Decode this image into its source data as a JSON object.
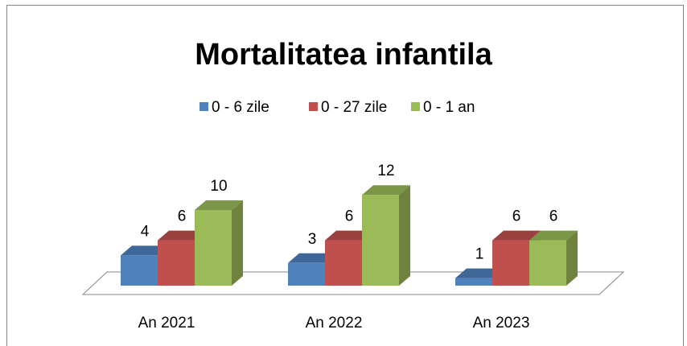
{
  "chart_data": {
    "type": "bar3d",
    "title": "Mortalitatea infantila",
    "categories": [
      "An 2021",
      "An 2022",
      "An 2023"
    ],
    "series": [
      {
        "name": "0 - 6 zile",
        "color": "#4f81bd",
        "values": [
          4,
          3,
          1
        ]
      },
      {
        "name": "0 - 27 zile",
        "color": "#c0504d",
        "values": [
          6,
          6,
          6
        ]
      },
      {
        "name": "0 - 1 an",
        "color": "#9bbb59",
        "values": [
          10,
          12,
          6
        ]
      }
    ],
    "legend": "top"
  }
}
